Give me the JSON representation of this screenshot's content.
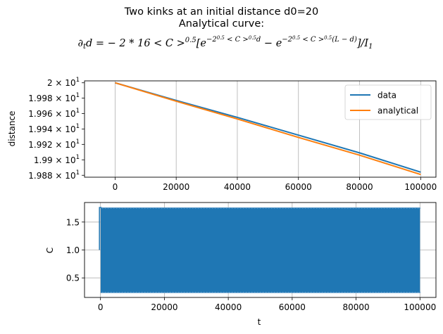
{
  "figure": {
    "title_line1": "Two kinks at an initial distance d0=20",
    "title_line2": "Analytical curve:"
  },
  "chart_data": [
    {
      "type": "line",
      "title": "",
      "xlabel": "",
      "ylabel": "distance",
      "xlim": [
        -10000,
        105000
      ],
      "ylim": [
        19.8775,
        20.0025
      ],
      "yscale": "log",
      "grid": true,
      "legend_position": "top-right",
      "x_ticks": [
        0,
        20000,
        40000,
        60000,
        80000,
        100000
      ],
      "x_tick_labels": [
        "0",
        "20000",
        "40000",
        "60000",
        "80000",
        "100000"
      ],
      "y_ticks": [
        19.88,
        19.9,
        19.92,
        19.94,
        19.96,
        19.98,
        20.0
      ],
      "y_tick_mantissas": [
        "1.988",
        "1.99",
        "1.992",
        "1.994",
        "1.996",
        "1.998",
        "2"
      ],
      "y_tick_base": "10",
      "y_tick_exponent": "1",
      "series": [
        {
          "name": "data",
          "color": "#1f77b4",
          "x": [
            0,
            20000,
            40000,
            60000,
            80000,
            100000
          ],
          "y": [
            20.0,
            19.977,
            19.955,
            19.932,
            19.909,
            19.884
          ]
        },
        {
          "name": "analytical",
          "color": "#ff7f0e",
          "x": [
            0,
            20000,
            40000,
            60000,
            80000,
            100000
          ],
          "y": [
            20.0,
            19.976,
            19.953,
            19.929,
            19.906,
            19.881
          ]
        }
      ]
    },
    {
      "type": "area",
      "title": "",
      "xlabel": "t",
      "ylabel": "C",
      "xlim": [
        -5000,
        105000
      ],
      "ylim": [
        0.15,
        1.85
      ],
      "grid": true,
      "x_ticks": [
        0,
        20000,
        40000,
        60000,
        80000,
        100000
      ],
      "x_tick_labels": [
        "0",
        "20000",
        "40000",
        "60000",
        "80000",
        "100000"
      ],
      "y_ticks": [
        0.5,
        1.0,
        1.5
      ],
      "y_tick_labels": [
        "0.5",
        "1.0",
        "1.5"
      ],
      "series": [
        {
          "name": "",
          "color": "#1f77b4",
          "x": [
            0,
            100000
          ],
          "y_min": 0.23,
          "y_max": 1.76,
          "start_value": 1.0
        }
      ]
    }
  ]
}
